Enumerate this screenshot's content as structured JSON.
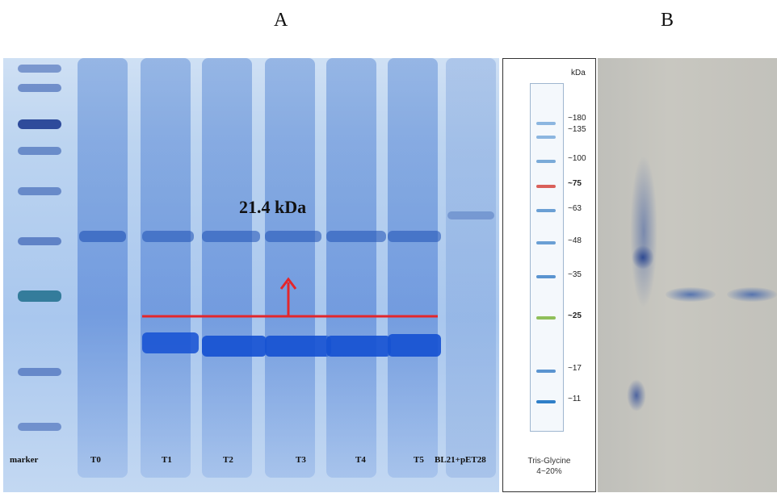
{
  "panel_a_label": "A",
  "panel_b_label": "B",
  "gel": {
    "molecular_weight_label": "21.4 kDa",
    "lanes": [
      "marker",
      "T0",
      "T1",
      "T2",
      "T3",
      "T4",
      "T5",
      "BL21+pET28"
    ]
  },
  "ladder": {
    "unit": "kDa",
    "marks": [
      "~180",
      "~135",
      "~100",
      "~75",
      "~63",
      "~48",
      "~35",
      "~25",
      "~17",
      "~11"
    ],
    "caption_line1": "Tris-Glycine",
    "caption_line2": "4~20%"
  },
  "colors": {
    "arrow_red": "#e3262b",
    "gel_blue": "#5a8ee0",
    "ladder_red": "#d9605a",
    "ladder_green": "#8fbf5a"
  }
}
